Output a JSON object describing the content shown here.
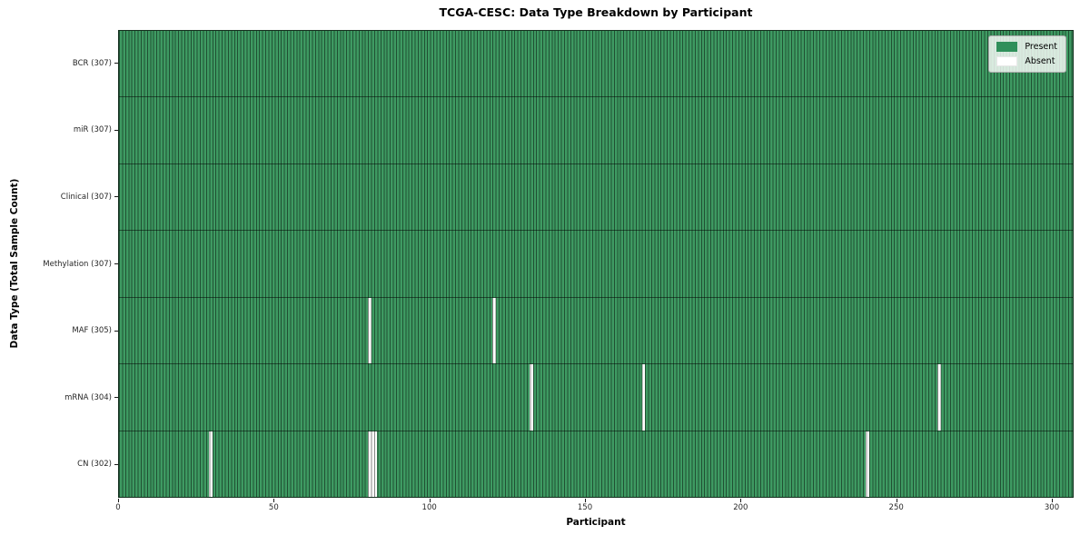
{
  "figure": {
    "title": "TCGA-CESC: Data Type Breakdown by Participant"
  },
  "chart_data": {
    "type": "heatmap",
    "title": "TCGA-CESC: Data Type Breakdown by Participant",
    "xlabel": "Participant",
    "ylabel": "Data Type (Total Sample Count)",
    "x_ticks": [
      0,
      50,
      100,
      150,
      200,
      250,
      300
    ],
    "x_range": [
      0,
      307
    ],
    "n_participants": 307,
    "grid": false,
    "legend_position": "upper-right",
    "colors": {
      "present": "#3E9A62",
      "absent": "#FFFFFF",
      "cell_edge_overlay": "rgba(0,0,0,0.5)",
      "legend_swatch_present": "#2F8F5A"
    },
    "legend": [
      {
        "label": "Present",
        "color": "#2F8F5A"
      },
      {
        "label": "Absent",
        "color": "#FFFFFF"
      }
    ],
    "rows": [
      {
        "label": "BCR (307)",
        "data_type": "BCR",
        "count": 307,
        "absent_participants": []
      },
      {
        "label": "miR (307)",
        "data_type": "miR",
        "count": 307,
        "absent_participants": []
      },
      {
        "label": "Clinical (307)",
        "data_type": "Clinical",
        "count": 307,
        "absent_participants": []
      },
      {
        "label": "Methylation (307)",
        "data_type": "Methylation",
        "count": 307,
        "absent_participants": []
      },
      {
        "label": "MAF (305)",
        "data_type": "MAF",
        "count": 305,
        "absent_participants": [
          80,
          120
        ]
      },
      {
        "label": "mRNA (304)",
        "data_type": "mRNA",
        "count": 304,
        "absent_participants": [
          132,
          168,
          263
        ]
      },
      {
        "label": "CN (302)",
        "data_type": "CN",
        "count": 302,
        "absent_participants": [
          29,
          80,
          81,
          82,
          240
        ]
      }
    ]
  }
}
